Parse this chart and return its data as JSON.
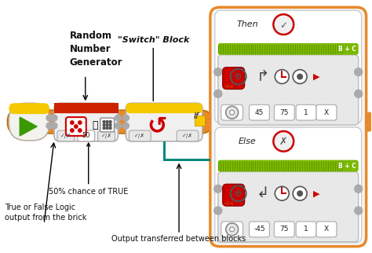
{
  "bg_color": "#ffffff",
  "fig_width": 4.74,
  "fig_height": 3.22,
  "dpi": 100,
  "annotation_switch_block": "\"Switch\" Block",
  "annotation_random_gen": "Random\nNumber\nGenerator",
  "annotation_if": "If",
  "annotation_50pct": "50% chance of TRUE",
  "annotation_true_false": "True or False Logic\noutput from the brick",
  "annotation_output": "Output transferred between blocks",
  "then_label": "Then",
  "else_label": "Else",
  "bc_label": "B + C",
  "then_values": [
    "45",
    "75",
    "1",
    "X"
  ],
  "else_values": [
    "-45",
    "75",
    "1",
    "X"
  ],
  "outer_box_color": "#E8892A",
  "green_bar_color": "#7ab800",
  "red_top_color": "#cc2200",
  "yellow_top_color": "#f5c800",
  "teal_wire_color": "#00897B",
  "checkmark_circle_color": "#cc0000",
  "x_circle_color": "#cc0000",
  "annotation_color": "#111111",
  "label_fontsize": 7.5,
  "small_fontsize": 6.0,
  "bold_label_fontsize": 8.5
}
